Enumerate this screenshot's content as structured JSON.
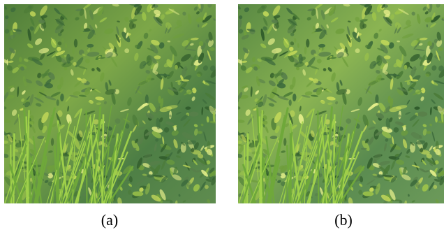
{
  "panels": [
    {
      "caption": "(a)"
    },
    {
      "caption": "(b)"
    }
  ]
}
